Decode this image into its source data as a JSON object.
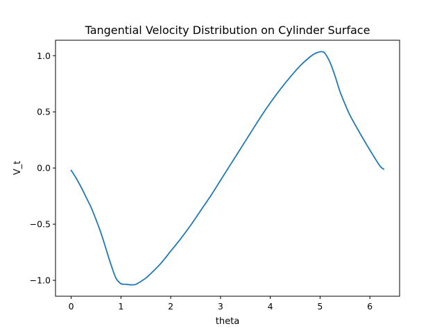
{
  "chart_data": {
    "type": "line",
    "title": "Tangential Velocity Distribution on Cylinder Surface",
    "xlabel": "theta",
    "ylabel": "V_t",
    "xlim": [
      -0.3142,
      6.5973
    ],
    "ylim": [
      -1.1415,
      1.1375
    ],
    "xticks": [
      0,
      1,
      2,
      3,
      4,
      5,
      6
    ],
    "xtick_labels": [
      "0",
      "1",
      "2",
      "3",
      "4",
      "5",
      "6"
    ],
    "yticks": [
      -1.0,
      -0.5,
      0.0,
      0.5,
      1.0
    ],
    "ytick_labels": [
      "−1.0",
      "−0.5",
      "0.0",
      "0.5",
      "1.0"
    ],
    "grid": false,
    "line_color": "#1f77b4",
    "series": [
      {
        "x": [
          0.0,
          0.1,
          0.2,
          0.3,
          0.4,
          0.5,
          0.6,
          0.7,
          0.8,
          0.9,
          1.0,
          1.1,
          1.2,
          1.25,
          1.3,
          1.4,
          1.5,
          1.6,
          1.8,
          2.0,
          2.2,
          2.4,
          2.6,
          2.8,
          3.0,
          3.2,
          3.4,
          3.6,
          3.8,
          4.0,
          4.2,
          4.4,
          4.6,
          4.8,
          4.9,
          5.0,
          5.05,
          5.1,
          5.2,
          5.3,
          5.4,
          5.5,
          5.6,
          5.8,
          6.0,
          6.2,
          6.28
        ],
        "y": [
          -0.02,
          -0.09,
          -0.17,
          -0.26,
          -0.35,
          -0.46,
          -0.58,
          -0.72,
          -0.86,
          -0.98,
          -1.03,
          -1.035,
          -1.04,
          -1.04,
          -1.035,
          -1.01,
          -0.98,
          -0.94,
          -0.85,
          -0.74,
          -0.63,
          -0.51,
          -0.38,
          -0.25,
          -0.11,
          0.03,
          0.17,
          0.31,
          0.45,
          0.58,
          0.7,
          0.81,
          0.91,
          0.99,
          1.02,
          1.035,
          1.035,
          1.02,
          0.94,
          0.82,
          0.68,
          0.57,
          0.47,
          0.31,
          0.16,
          0.02,
          -0.01
        ]
      }
    ]
  }
}
